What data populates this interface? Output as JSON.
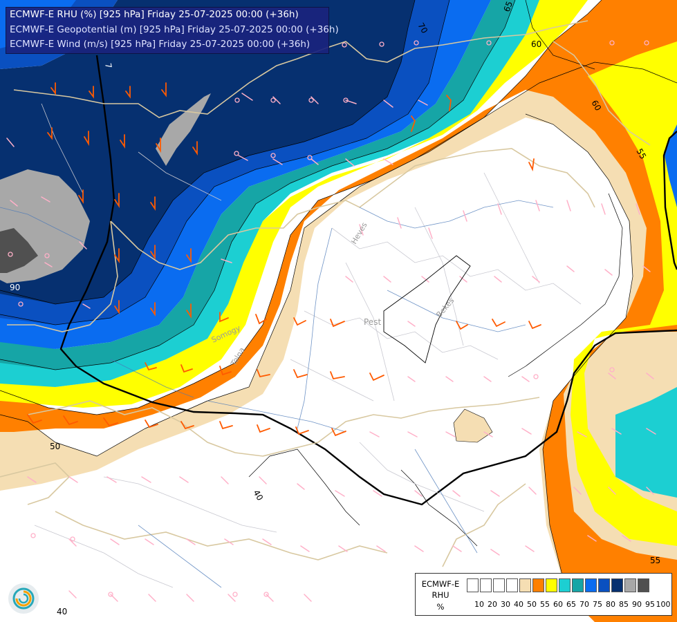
{
  "header": {
    "line1": "ECMWF-E RHU (%) [925 hPa] Friday 25-07-2025 00:00 (+36h)",
    "line2": "ECMWF-E Geopotential (m) [925 hPa] Friday 25-07-2025 00:00 (+36h)",
    "line3": "ECMWF-E Wind (m/s) [925 hPa] Friday 25-07-2025 00:00 (+36h)"
  },
  "legend": {
    "title1": "ECMWF-E",
    "title2": "RHU",
    "unit": "%",
    "ticks": [
      "10",
      "20",
      "30",
      "40",
      "50",
      "55",
      "60",
      "65",
      "70",
      "75",
      "80",
      "85",
      "90",
      "95",
      "100"
    ],
    "colors": [
      "#ffffff",
      "#ffffff",
      "#ffffff",
      "#ffffff",
      "#f5deb3",
      "#ff8000",
      "#ffff00",
      "#1ccfd2",
      "#16a5a6",
      "#0a6cf0",
      "#0a50c0",
      "#063070",
      "#a8a8a8",
      "#505050"
    ]
  },
  "contour_labels": {
    "c70": "70",
    "c65": "65",
    "c60a": "60",
    "c60b": "60",
    "c50": "50",
    "c40a": "40",
    "c40b": "40",
    "c55a": "55",
    "c55b": "55",
    "c90": "90",
    "c75": "7"
  },
  "place_labels": {
    "heves": "Heves",
    "pest": "Pest",
    "bekes": "Bekes",
    "somogy": "Somogy",
    "tolna": "Tolna"
  },
  "colors": {
    "c100": "#505050",
    "c95": "#a8a8a8",
    "c90": "#063070",
    "c85": "#0a50c0",
    "c80": "#0a6cf0",
    "c75": "#16a5a6",
    "c70": "#1ccfd2",
    "c65": "#ffff00",
    "c60": "#ff8000",
    "c55": "#f5deb3",
    "border": "#d8c8a0",
    "river": "#4a78b8",
    "barb_strong": "#ff5a00",
    "barb_weak": "#ffb0c8",
    "geopotential": "#000000"
  }
}
